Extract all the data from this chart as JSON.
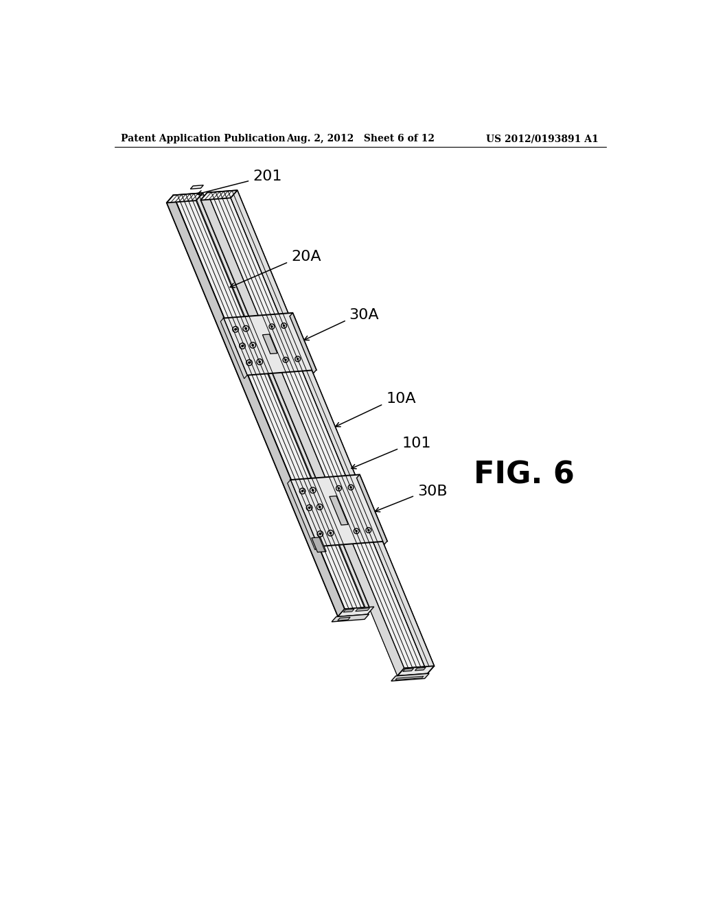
{
  "bg_color": "#ffffff",
  "header_left": "Patent Application Publication",
  "header_mid": "Aug. 2, 2012   Sheet 6 of 12",
  "header_right": "US 2012/0193891 A1",
  "fig_label": "FIG. 6",
  "rail_color_top": "#f0f0f0",
  "rail_color_side": "#e0e0e0",
  "rail_color_dark": "#c8c8c8",
  "bracket_color": "#e8e8e8",
  "bracket_side": "#d0d0d0",
  "line_color": "#000000",
  "label_201": "201",
  "label_20A": "20A",
  "label_30A": "30A",
  "label_10A": "10A",
  "label_101": "101",
  "label_30B": "30B"
}
